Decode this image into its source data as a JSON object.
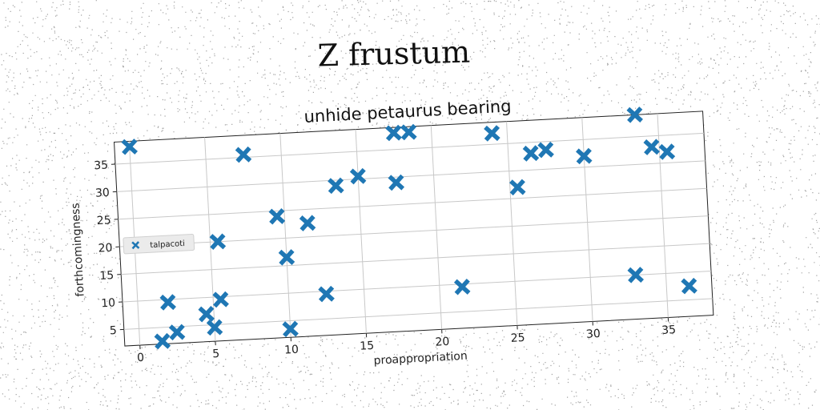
{
  "suptitle": "Z frustum",
  "chart_data": {
    "type": "scatter",
    "title": "unhide petaurus bearing",
    "xlabel": "proappropriation",
    "ylabel": "forthcomingness",
    "xlim": [
      -1,
      38
    ],
    "ylim": [
      2,
      39
    ],
    "xticks": [
      "0",
      "5",
      "10",
      "15",
      "20",
      "25",
      "30",
      "35"
    ],
    "yticks": [
      "5",
      "10",
      "15",
      "20",
      "25",
      "30",
      "35"
    ],
    "grid": true,
    "legend": {
      "position": "center-left"
    },
    "series": [
      {
        "name": "talpacoti",
        "color": "#1f77b4",
        "marker": "x",
        "points": [
          [
            0,
            38
          ],
          [
            1.5,
            2.5
          ],
          [
            2,
            9.5
          ],
          [
            2.5,
            4
          ],
          [
            4.5,
            7
          ],
          [
            5,
            4.5
          ],
          [
            5.5,
            20
          ],
          [
            5.5,
            9.5
          ],
          [
            7.5,
            35.5
          ],
          [
            9.5,
            24
          ],
          [
            10,
            16.5
          ],
          [
            10,
            3.5
          ],
          [
            11.5,
            22.5
          ],
          [
            12.5,
            9.5
          ],
          [
            13.5,
            29
          ],
          [
            15,
            30.5
          ],
          [
            17.5,
            38
          ],
          [
            17.5,
            29
          ],
          [
            18.5,
            38
          ],
          [
            21.5,
            9.5
          ],
          [
            24,
            37
          ],
          [
            25.5,
            27
          ],
          [
            26.5,
            33
          ],
          [
            27.5,
            33.5
          ],
          [
            30,
            32
          ],
          [
            33,
            10
          ],
          [
            33.5,
            39
          ],
          [
            34.5,
            33
          ],
          [
            35.5,
            32
          ],
          [
            36.5,
            7.5
          ]
        ]
      }
    ]
  }
}
